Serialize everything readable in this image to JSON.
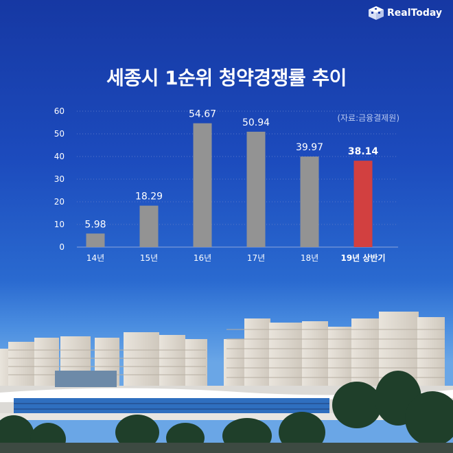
{
  "brand": {
    "name": "RealToday"
  },
  "title": "세종시 1순위 청약경쟁률 추이",
  "source": "(자료:금융결제원)",
  "colors": {
    "bar": "#939393",
    "highlight": "#d24040",
    "sky_top": "#1638a3",
    "text": "#ffffff"
  },
  "chart_data": {
    "type": "bar",
    "title": "세종시 1순위 청약경쟁률 추이",
    "categories": [
      "14년",
      "15년",
      "16년",
      "17년",
      "18년",
      "19년 상반기"
    ],
    "values": [
      5.98,
      18.29,
      54.67,
      50.94,
      39.97,
      38.14
    ],
    "value_labels": [
      "5.98",
      "18.29",
      "54.67",
      "50.94",
      "39.97",
      "38.14"
    ],
    "highlight_index": 5,
    "yticks": [
      "0",
      "10",
      "20",
      "30",
      "40",
      "50",
      "60"
    ],
    "ylim": [
      0,
      60
    ],
    "xlabel": "",
    "ylabel": "",
    "grid": true,
    "legend": "none"
  }
}
